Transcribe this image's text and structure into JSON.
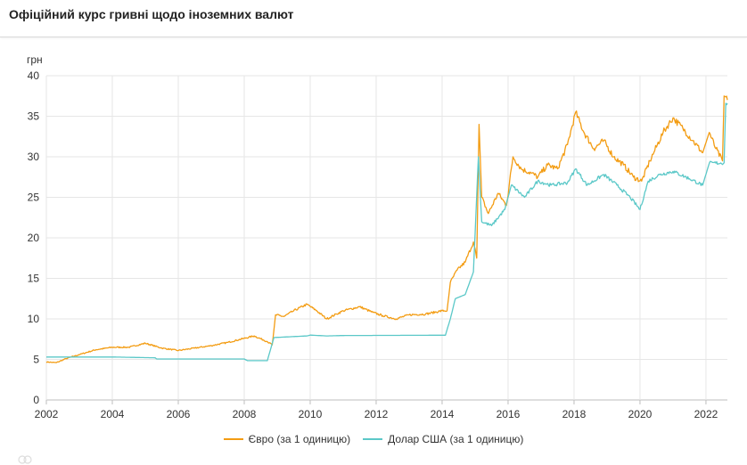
{
  "header": {
    "title": "Офіційний курс гривні щодо іноземних валют"
  },
  "chart_data": {
    "type": "line",
    "title": "Офіційний курс гривні щодо іноземних валют",
    "ylabel": "грн",
    "xlabel": "",
    "xlim": [
      2002,
      2022.65
    ],
    "ylim": [
      0,
      40
    ],
    "grid": true,
    "legend": "bottom-center",
    "x_ticks": [
      "2002",
      "2004",
      "2006",
      "2008",
      "2010",
      "2012",
      "2014",
      "2016",
      "2018",
      "2020",
      "2022"
    ],
    "y_ticks": [
      "0",
      "5",
      "10",
      "15",
      "20",
      "25",
      "30",
      "35",
      "40"
    ],
    "series": [
      {
        "name": "Євро (за 1 одиницю)",
        "color": "#f39c12",
        "points": [
          [
            2002.0,
            4.7
          ],
          [
            2002.3,
            4.6
          ],
          [
            2002.6,
            5.1
          ],
          [
            2003.0,
            5.6
          ],
          [
            2003.5,
            6.2
          ],
          [
            2004.0,
            6.5
          ],
          [
            2004.5,
            6.5
          ],
          [
            2005.0,
            7.0
          ],
          [
            2005.5,
            6.4
          ],
          [
            2006.0,
            6.1
          ],
          [
            2006.5,
            6.4
          ],
          [
            2007.0,
            6.7
          ],
          [
            2007.5,
            7.1
          ],
          [
            2008.0,
            7.6
          ],
          [
            2008.3,
            7.9
          ],
          [
            2008.7,
            7.2
          ],
          [
            2008.85,
            6.8
          ],
          [
            2008.95,
            10.5
          ],
          [
            2009.2,
            10.3
          ],
          [
            2009.5,
            11.0
          ],
          [
            2009.9,
            11.8
          ],
          [
            2010.2,
            11.0
          ],
          [
            2010.5,
            10.0
          ],
          [
            2010.8,
            10.6
          ],
          [
            2011.0,
            11.0
          ],
          [
            2011.5,
            11.5
          ],
          [
            2011.9,
            10.8
          ],
          [
            2012.2,
            10.4
          ],
          [
            2012.6,
            10.0
          ],
          [
            2013.0,
            10.5
          ],
          [
            2013.5,
            10.6
          ],
          [
            2014.0,
            11.0
          ],
          [
            2014.15,
            11.0
          ],
          [
            2014.25,
            14.5
          ],
          [
            2014.45,
            16.0
          ],
          [
            2014.7,
            17.0
          ],
          [
            2014.95,
            19.5
          ],
          [
            2015.05,
            17.5
          ],
          [
            2015.12,
            34.0
          ],
          [
            2015.2,
            25.0
          ],
          [
            2015.4,
            23.0
          ],
          [
            2015.7,
            25.5
          ],
          [
            2015.95,
            24.0
          ],
          [
            2016.15,
            30.0
          ],
          [
            2016.4,
            28.5
          ],
          [
            2016.7,
            28.0
          ],
          [
            2016.9,
            27.5
          ],
          [
            2017.2,
            29.0
          ],
          [
            2017.5,
            28.5
          ],
          [
            2017.8,
            31.5
          ],
          [
            2018.05,
            35.5
          ],
          [
            2018.3,
            33.0
          ],
          [
            2018.6,
            31.0
          ],
          [
            2018.9,
            32.0
          ],
          [
            2019.2,
            30.0
          ],
          [
            2019.5,
            29.0
          ],
          [
            2019.8,
            27.5
          ],
          [
            2020.05,
            27.0
          ],
          [
            2020.3,
            29.5
          ],
          [
            2020.45,
            30.8
          ],
          [
            2020.7,
            33.0
          ],
          [
            2021.0,
            34.8
          ],
          [
            2021.3,
            33.5
          ],
          [
            2021.6,
            32.0
          ],
          [
            2021.9,
            30.5
          ],
          [
            2022.1,
            33.0
          ],
          [
            2022.3,
            31.0
          ],
          [
            2022.5,
            29.5
          ],
          [
            2022.55,
            37.5
          ],
          [
            2022.65,
            37.0
          ]
        ]
      },
      {
        "name": "Долар США (за 1 одиницю)",
        "color": "#5bc8c8",
        "points": [
          [
            2002.0,
            5.3
          ],
          [
            2004.0,
            5.3
          ],
          [
            2005.3,
            5.2
          ],
          [
            2005.35,
            5.05
          ],
          [
            2008.0,
            5.05
          ],
          [
            2008.1,
            4.85
          ],
          [
            2008.7,
            4.85
          ],
          [
            2008.9,
            7.7
          ],
          [
            2009.9,
            7.9
          ],
          [
            2010.0,
            8.0
          ],
          [
            2010.5,
            7.9
          ],
          [
            2011.0,
            7.95
          ],
          [
            2014.1,
            7.99
          ],
          [
            2014.25,
            10.0
          ],
          [
            2014.4,
            12.5
          ],
          [
            2014.7,
            13.0
          ],
          [
            2014.95,
            15.8
          ],
          [
            2015.1,
            30.0
          ],
          [
            2015.2,
            22.0
          ],
          [
            2015.5,
            21.5
          ],
          [
            2015.9,
            23.5
          ],
          [
            2016.1,
            26.5
          ],
          [
            2016.5,
            25.0
          ],
          [
            2016.9,
            27.0
          ],
          [
            2017.3,
            26.5
          ],
          [
            2017.8,
            26.8
          ],
          [
            2018.05,
            28.5
          ],
          [
            2018.4,
            26.5
          ],
          [
            2018.9,
            27.8
          ],
          [
            2019.3,
            26.5
          ],
          [
            2019.7,
            25.0
          ],
          [
            2020.0,
            23.5
          ],
          [
            2020.25,
            27.0
          ],
          [
            2020.6,
            27.8
          ],
          [
            2021.0,
            28.2
          ],
          [
            2021.5,
            27.3
          ],
          [
            2021.9,
            26.5
          ],
          [
            2022.1,
            29.2
          ],
          [
            2022.55,
            29.25
          ],
          [
            2022.6,
            36.6
          ],
          [
            2022.65,
            36.6
          ]
        ]
      }
    ]
  }
}
